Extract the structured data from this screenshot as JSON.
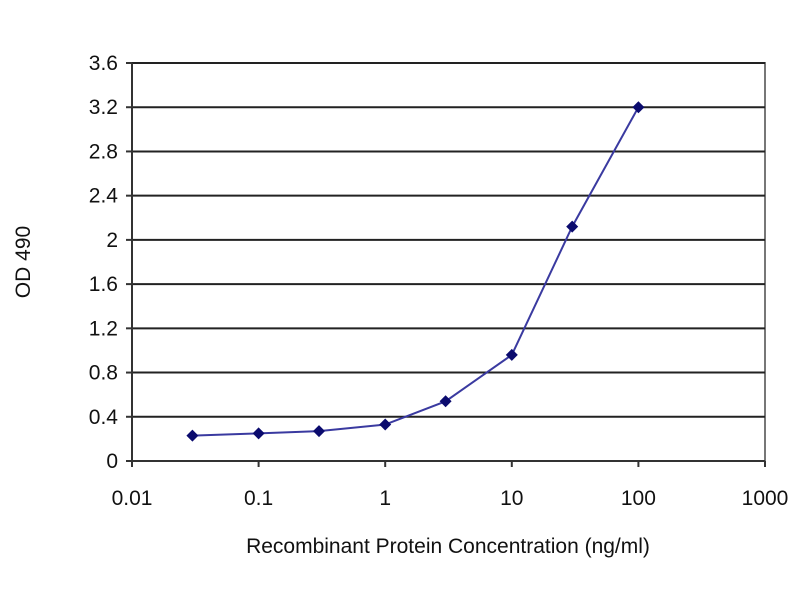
{
  "chart_data": {
    "type": "line",
    "title": "",
    "xlabel": "Recombinant Protein Concentration (ng/ml)",
    "ylabel": "OD 490",
    "xscale": "log",
    "xlim": [
      0.01,
      1000
    ],
    "ylim": [
      0,
      3.6
    ],
    "x_ticks": [
      "0.01",
      "0.1",
      "1",
      "10",
      "100",
      "1000"
    ],
    "y_ticks": [
      "0",
      "0.4",
      "0.8",
      "1.2",
      "1.6",
      "2",
      "2.4",
      "2.8",
      "3.2",
      "3.6"
    ],
    "grid": "horizontal",
    "legend": "none",
    "series": [
      {
        "x": [
          0.03,
          0.1,
          0.3,
          1,
          3,
          10,
          30,
          100
        ],
        "y": [
          0.23,
          0.25,
          0.27,
          0.33,
          0.54,
          0.96,
          2.12,
          3.2
        ]
      }
    ],
    "colors": {
      "line": "#3a3aa0",
      "marker": "#0b0b6e",
      "grid": "#222222",
      "frame": "#777777"
    }
  }
}
